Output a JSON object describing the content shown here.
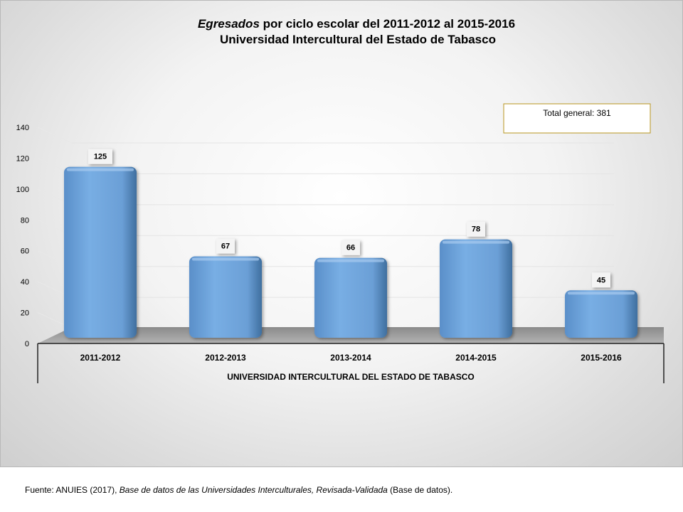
{
  "chart_data": {
    "type": "bar",
    "title_italic": "Egresados",
    "title_rest": " por ciclo escolar del 2011-2012 al 2015-2016",
    "subtitle": "Universidad Intercultural del Estado de Tabasco",
    "categories": [
      "2011-2012",
      "2012-2013",
      "2013-2014",
      "2014-2015",
      "2015-2016"
    ],
    "group_label": "UNIVERSIDAD INTERCULTURAL DEL ESTADO DE TABASCO",
    "series": [
      {
        "values": [
          125,
          67,
          66,
          78,
          45
        ],
        "color": "#6fa4dc"
      }
    ],
    "data_labels": [
      "125",
      "67",
      "66",
      "78",
      "45"
    ],
    "yticks": [
      "0",
      "20",
      "40",
      "60",
      "80",
      "100",
      "120",
      "140"
    ],
    "ylim": [
      0,
      140
    ],
    "grid": true,
    "legend": "none",
    "annotation": "Total general: 381",
    "annotation_border_color": "#b8961f"
  },
  "source": {
    "prefix": "Fuente: ANUIES (2017), ",
    "italic": "Base de datos de las Universidades  Interculturales, Revisada-Validada",
    "suffix": "  (Base de datos)."
  }
}
